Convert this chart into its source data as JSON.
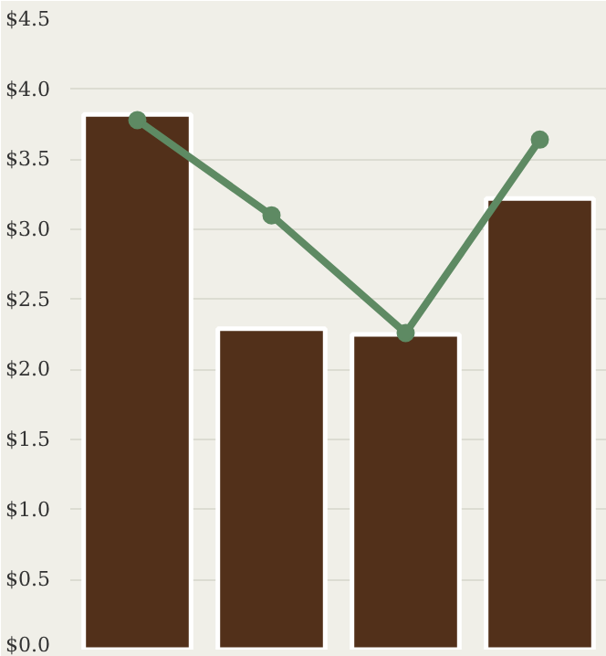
{
  "chart_data": {
    "type": "bar",
    "categories": [
      null,
      null,
      null,
      null
    ],
    "series": [
      {
        "color": "#52301a",
        "values": [
          3.82,
          2.29,
          2.25,
          3.22
        ]
      },
      {
        "type": "line",
        "color": "#5e8a63",
        "values": [
          3.78,
          3.1,
          2.26,
          3.64
        ]
      }
    ],
    "ylim": [
      0,
      4.5
    ],
    "yticks": [
      {
        "value": 0,
        "label": "$0.0"
      },
      {
        "value": 0.5,
        "label": "$0.5"
      },
      {
        "value": 1,
        "label": "$1.0"
      },
      {
        "value": 1.5,
        "label": "$1.5"
      },
      {
        "value": 2,
        "label": "$2.0"
      },
      {
        "value": 2.5,
        "label": "$2.5"
      },
      {
        "value": 3,
        "label": "$3.0"
      },
      {
        "value": 3.5,
        "label": "$3.5"
      },
      {
        "value": 4,
        "label": "$4.0"
      },
      {
        "value": 4.5,
        "label": "$4.5"
      }
    ],
    "grid": "y",
    "marker": "circle",
    "line_style": "solid"
  }
}
